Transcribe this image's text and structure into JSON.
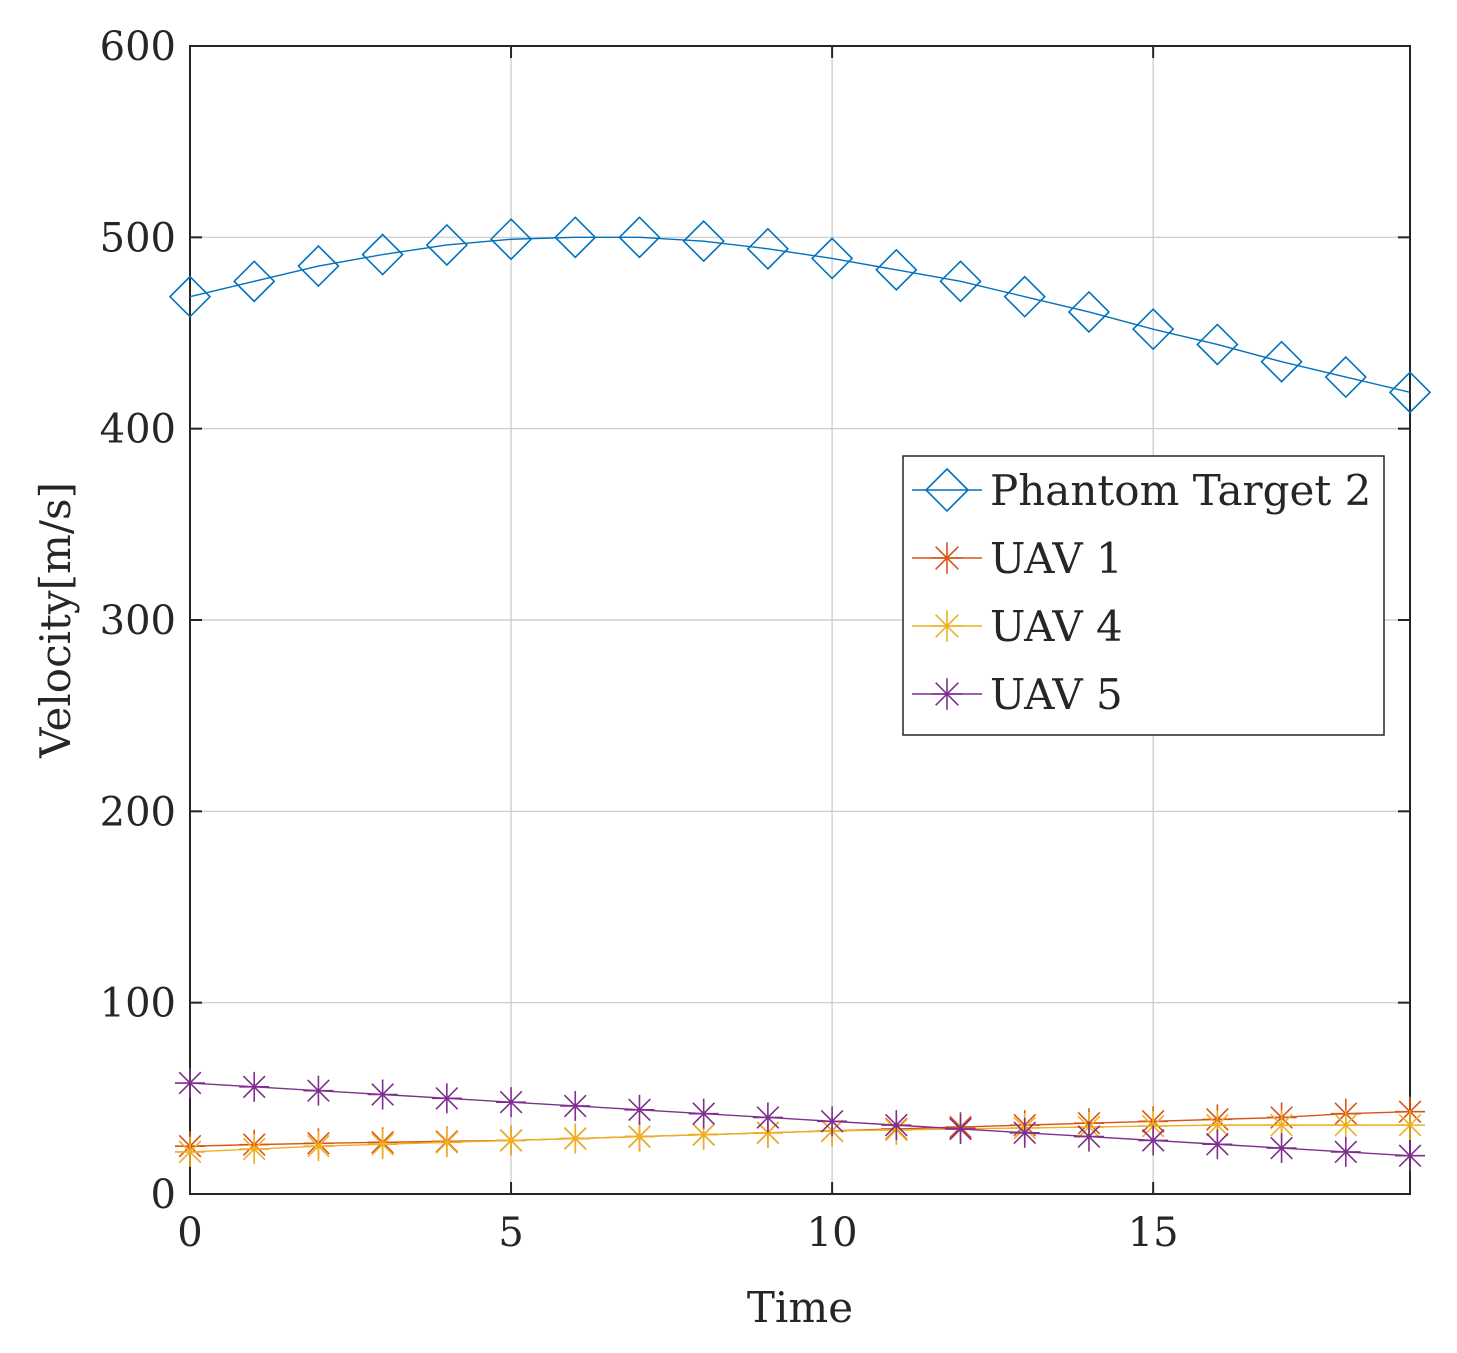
{
  "chart_data": {
    "type": "line",
    "title": "",
    "xlabel": "Time",
    "ylabel": "Velocity[m/s]",
    "xlim": [
      0,
      19
    ],
    "ylim": [
      0,
      600
    ],
    "xticks": [
      0,
      5,
      10,
      15
    ],
    "yticks": [
      0,
      100,
      200,
      300,
      400,
      500,
      600
    ],
    "grid": true,
    "legend_position": "center-right",
    "x": [
      0,
      1,
      2,
      3,
      4,
      5,
      6,
      7,
      8,
      9,
      10,
      11,
      12,
      13,
      14,
      15,
      16,
      17,
      18,
      19
    ],
    "series": [
      {
        "name": "Phantom Target 2",
        "color": "#0072bd",
        "marker": "diamond",
        "values": [
          469,
          477,
          485,
          491,
          496,
          499,
          500,
          500,
          498,
          494,
          489,
          483,
          477,
          469,
          461,
          452,
          444,
          435,
          427,
          419
        ]
      },
      {
        "name": "UAV 1",
        "color": "#d95319",
        "marker": "asterisk",
        "values": [
          25,
          25.8,
          26.5,
          27,
          27.5,
          28,
          29,
          30,
          31,
          32,
          33,
          34,
          35,
          36,
          37,
          38,
          39,
          40,
          42,
          43
        ]
      },
      {
        "name": "UAV 4",
        "color": "#edb120",
        "marker": "asterisk",
        "values": [
          22,
          23.5,
          25,
          26,
          27,
          28,
          29,
          30,
          31,
          32,
          33,
          33.5,
          34,
          34.5,
          35,
          35.5,
          36,
          36,
          36,
          36
        ]
      },
      {
        "name": "UAV 5",
        "color": "#7e2f8e",
        "marker": "asterisk",
        "values": [
          58,
          56,
          54,
          52,
          50,
          48,
          46,
          44,
          42,
          40,
          38,
          36,
          34,
          32,
          30,
          28,
          26,
          24,
          22,
          20
        ]
      }
    ]
  }
}
